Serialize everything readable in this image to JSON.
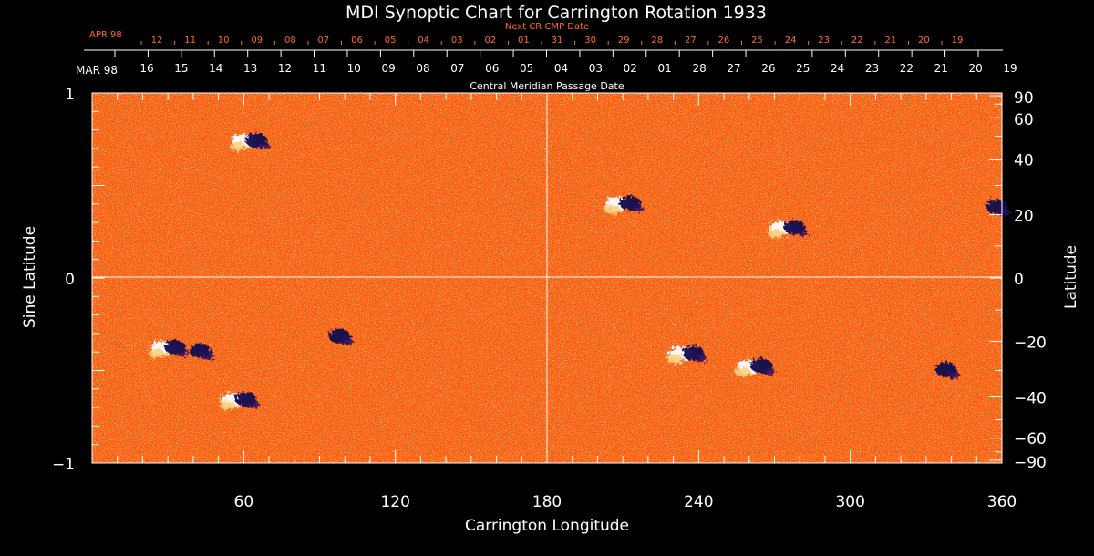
{
  "chart_data": {
    "type": "heatmap",
    "title": "MDI Synoptic Chart for Carrington Rotation 1933",
    "xlabel": "Carrington Longitude",
    "ylabel_left": "Sine Latitude",
    "ylabel_right": "Latitude",
    "xlim": [
      0,
      360
    ],
    "ylim": [
      -1,
      1
    ],
    "x_ticks": [
      60,
      120,
      180,
      240,
      300,
      360
    ],
    "y_ticks_left": [
      1,
      0,
      -1
    ],
    "y_ticks_left_labels": [
      "1",
      "0",
      "−1"
    ],
    "y_ticks_right_deg": [
      90,
      60,
      40,
      20,
      0,
      -20,
      -40,
      -60,
      -90
    ],
    "y_ticks_right_labels": [
      "90",
      "60",
      "40",
      "20",
      "0",
      "−20",
      "−40",
      "−60",
      "−90"
    ],
    "top_axis_title": "Central Meridian Passage Date",
    "top_axis_month_label": "MAR 98",
    "top_axis_dates": [
      "16",
      "15",
      "14",
      "13",
      "12",
      "11",
      "10",
      "09",
      "08",
      "07",
      "06",
      "05",
      "04",
      "03",
      "02",
      "01",
      "28",
      "27",
      "26",
      "25",
      "24",
      "23",
      "22",
      "21",
      "20",
      "19"
    ],
    "next_cr_title": "Next CR CMP Date",
    "next_cr_month_label": "APR 98",
    "next_cr_dates": [
      "12",
      "11",
      "10",
      "09",
      "08",
      "07",
      "06",
      "05",
      "04",
      "03",
      "02",
      "01",
      "31",
      "30",
      "29",
      "28",
      "27",
      "26",
      "25",
      "24",
      "23",
      "22",
      "21",
      "20",
      "19"
    ],
    "colors": {
      "field": "#ff5a10",
      "positive": "#ffffff",
      "negative": "#120a50",
      "next_cr": "#ff6a2a",
      "axes": "#ffffff"
    },
    "regions": [
      {
        "lon": 62,
        "lat_sine": 0.74,
        "polarity": "mixed"
      },
      {
        "lon": 30,
        "lat_sine": -0.38,
        "polarity": "mixed"
      },
      {
        "lon": 40,
        "lat_sine": -0.4,
        "polarity": "negative"
      },
      {
        "lon": 58,
        "lat_sine": -0.66,
        "polarity": "mixed"
      },
      {
        "lon": 95,
        "lat_sine": -0.32,
        "polarity": "negative"
      },
      {
        "lon": 210,
        "lat_sine": 0.4,
        "polarity": "mixed"
      },
      {
        "lon": 275,
        "lat_sine": 0.27,
        "polarity": "mixed"
      },
      {
        "lon": 235,
        "lat_sine": -0.41,
        "polarity": "mixed"
      },
      {
        "lon": 262,
        "lat_sine": -0.48,
        "polarity": "mixed"
      },
      {
        "lon": 335,
        "lat_sine": -0.5,
        "polarity": "negative"
      },
      {
        "lon": 355,
        "lat_sine": 0.38,
        "polarity": "negative"
      }
    ]
  }
}
